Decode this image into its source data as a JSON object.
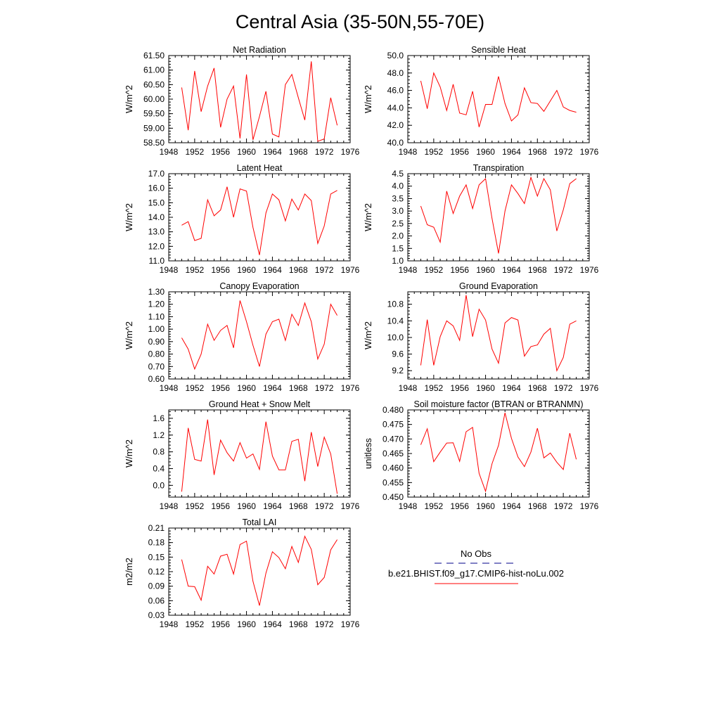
{
  "title": "Central Asia (35-50N,55-70E)",
  "colors": {
    "model": "#ff0000",
    "obs": "#00008b"
  },
  "legend": {
    "entries": [
      {
        "label": "No Obs",
        "style": "dashed",
        "color": "#00008b"
      },
      {
        "label": "b.e21.BHIST.f09_g17.CMIP6-hist-noLu.002",
        "style": "solid",
        "color": "#ff0000"
      }
    ]
  },
  "chart_data": [
    {
      "type": "line",
      "title": "Net Radiation",
      "ylabel": "W/m^2",
      "xlim": [
        1948,
        1976
      ],
      "xticks": [
        1948,
        1952,
        1956,
        1960,
        1964,
        1968,
        1972,
        1976
      ],
      "ylim": [
        58.5,
        61.5
      ],
      "yticks": [
        "58.50",
        "59.00",
        "59.50",
        "60.00",
        "60.50",
        "61.00",
        "61.50"
      ],
      "x": [
        1950,
        1951,
        1952,
        1953,
        1954,
        1955,
        1956,
        1957,
        1958,
        1959,
        1960,
        1961,
        1962,
        1963,
        1964,
        1965,
        1966,
        1967,
        1968,
        1969,
        1970,
        1971,
        1972,
        1973,
        1974
      ],
      "series": [
        {
          "values": [
            60.4,
            58.93,
            60.97,
            59.57,
            60.45,
            61.07,
            59.03,
            60.0,
            60.45,
            58.65,
            60.85,
            58.6,
            59.4,
            60.27,
            58.8,
            58.7,
            60.5,
            60.85,
            60.05,
            59.28,
            61.3,
            58.55,
            58.63,
            60.05,
            59.1
          ]
        }
      ]
    },
    {
      "type": "line",
      "title": "Sensible Heat",
      "ylabel": "W/m^2",
      "xlim": [
        1948,
        1976
      ],
      "xticks": [
        1948,
        1952,
        1956,
        1960,
        1964,
        1968,
        1972,
        1976
      ],
      "ylim": [
        40.0,
        50.0
      ],
      "yticks": [
        "40.0",
        "42.0",
        "44.0",
        "46.0",
        "48.0",
        "50.0"
      ],
      "x": [
        1950,
        1951,
        1952,
        1953,
        1954,
        1955,
        1956,
        1957,
        1958,
        1959,
        1960,
        1961,
        1962,
        1963,
        1964,
        1965,
        1966,
        1967,
        1968,
        1969,
        1970,
        1971,
        1972,
        1973,
        1974
      ],
      "series": [
        {
          "values": [
            47.1,
            43.9,
            48.0,
            46.4,
            43.7,
            46.7,
            43.4,
            43.2,
            45.9,
            41.8,
            44.4,
            44.4,
            47.6,
            44.5,
            42.5,
            43.2,
            46.3,
            44.6,
            44.5,
            43.6,
            44.8,
            46.0,
            44.1,
            43.7,
            43.5
          ]
        }
      ]
    },
    {
      "type": "line",
      "title": "Latent Heat",
      "ylabel": "W/m^2",
      "xlim": [
        1948,
        1976
      ],
      "xticks": [
        1948,
        1952,
        1956,
        1960,
        1964,
        1968,
        1972,
        1976
      ],
      "ylim": [
        11.0,
        17.0
      ],
      "yticks": [
        "11.0",
        "12.0",
        "13.0",
        "14.0",
        "15.0",
        "16.0",
        "17.0"
      ],
      "x": [
        1950,
        1951,
        1952,
        1953,
        1954,
        1955,
        1956,
        1957,
        1958,
        1959,
        1960,
        1961,
        1962,
        1963,
        1964,
        1965,
        1966,
        1967,
        1968,
        1969,
        1970,
        1971,
        1972,
        1973,
        1974
      ],
      "series": [
        {
          "values": [
            13.45,
            13.7,
            12.4,
            12.55,
            15.2,
            14.1,
            14.5,
            16.1,
            14.0,
            15.95,
            15.8,
            13.3,
            11.4,
            14.3,
            15.6,
            15.2,
            13.75,
            15.25,
            14.5,
            15.6,
            15.15,
            12.2,
            13.4,
            15.6,
            15.85
          ]
        }
      ]
    },
    {
      "type": "line",
      "title": "Transpiration",
      "ylabel": "W/m^2",
      "xlim": [
        1948,
        1976
      ],
      "xticks": [
        1948,
        1952,
        1956,
        1960,
        1964,
        1968,
        1972,
        1976
      ],
      "ylim": [
        1.0,
        4.5
      ],
      "yticks": [
        "1.0",
        "1.5",
        "2.0",
        "2.5",
        "3.0",
        "3.5",
        "4.0",
        "4.5"
      ],
      "x": [
        1950,
        1951,
        1952,
        1953,
        1954,
        1955,
        1956,
        1957,
        1958,
        1959,
        1960,
        1961,
        1962,
        1963,
        1964,
        1965,
        1966,
        1967,
        1968,
        1969,
        1970,
        1971,
        1972,
        1973,
        1974
      ],
      "series": [
        {
          "values": [
            3.2,
            2.45,
            2.35,
            1.75,
            3.8,
            2.9,
            3.6,
            4.05,
            3.1,
            4.05,
            4.3,
            2.7,
            1.3,
            3.0,
            4.05,
            3.7,
            3.3,
            4.35,
            3.6,
            4.3,
            3.85,
            2.2,
            3.05,
            4.1,
            4.3
          ]
        }
      ]
    },
    {
      "type": "line",
      "title": "Canopy Evaporation",
      "ylabel": "W/m^2",
      "xlim": [
        1948,
        1976
      ],
      "xticks": [
        1948,
        1952,
        1956,
        1960,
        1964,
        1968,
        1972,
        1976
      ],
      "ylim": [
        0.6,
        1.3
      ],
      "yticks": [
        "0.60",
        "0.70",
        "0.80",
        "0.90",
        "1.00",
        "1.10",
        "1.20",
        "1.30"
      ],
      "x": [
        1950,
        1951,
        1952,
        1953,
        1954,
        1955,
        1956,
        1957,
        1958,
        1959,
        1960,
        1961,
        1962,
        1963,
        1964,
        1965,
        1966,
        1967,
        1968,
        1969,
        1970,
        1971,
        1972,
        1973,
        1974
      ],
      "series": [
        {
          "values": [
            0.93,
            0.84,
            0.68,
            0.8,
            1.04,
            0.91,
            0.99,
            1.03,
            0.85,
            1.23,
            1.06,
            0.87,
            0.7,
            0.96,
            1.06,
            1.08,
            0.91,
            1.12,
            1.03,
            1.21,
            1.06,
            0.76,
            0.88,
            1.2,
            1.11
          ]
        }
      ]
    },
    {
      "type": "line",
      "title": "Ground Evaporation",
      "ylabel": "W/m^2",
      "xlim": [
        1948,
        1976
      ],
      "xticks": [
        1948,
        1952,
        1956,
        1960,
        1964,
        1968,
        1972,
        1976
      ],
      "ylim": [
        9.0,
        11.1
      ],
      "yticks": [
        "9.2",
        "9.6",
        "10.0",
        "10.4",
        "10.8"
      ],
      "ytick_values": [
        9.2,
        9.6,
        10.0,
        10.4,
        10.8
      ],
      "x": [
        1950,
        1951,
        1952,
        1953,
        1954,
        1955,
        1956,
        1957,
        1958,
        1959,
        1960,
        1961,
        1962,
        1963,
        1964,
        1965,
        1966,
        1967,
        1968,
        1969,
        1970,
        1971,
        1972,
        1973,
        1974
      ],
      "series": [
        {
          "values": [
            9.33,
            10.43,
            9.33,
            10.02,
            10.4,
            10.28,
            9.93,
            11.02,
            10.02,
            10.68,
            10.42,
            9.72,
            9.38,
            10.35,
            10.48,
            10.42,
            9.55,
            9.78,
            9.82,
            10.08,
            10.22,
            9.2,
            9.52,
            10.32,
            10.4
          ]
        }
      ]
    },
    {
      "type": "line",
      "title": "Ground Heat + Snow Melt",
      "ylabel": "W/m^2",
      "xlim": [
        1948,
        1976
      ],
      "xticks": [
        1948,
        1952,
        1956,
        1960,
        1964,
        1968,
        1972,
        1976
      ],
      "ylim": [
        -0.28,
        1.8
      ],
      "yticks": [
        "0.0",
        "0.4",
        "0.8",
        "1.2",
        "1.6"
      ],
      "ytick_values": [
        0.0,
        0.4,
        0.8,
        1.2,
        1.6
      ],
      "x": [
        1950,
        1951,
        1952,
        1953,
        1954,
        1955,
        1956,
        1957,
        1958,
        1959,
        1960,
        1961,
        1962,
        1963,
        1964,
        1965,
        1966,
        1967,
        1968,
        1969,
        1970,
        1971,
        1972,
        1973,
        1974
      ],
      "series": [
        {
          "values": [
            -0.15,
            1.37,
            0.62,
            0.58,
            1.57,
            0.25,
            1.08,
            0.78,
            0.58,
            1.02,
            0.65,
            0.75,
            0.38,
            1.52,
            0.7,
            0.37,
            0.37,
            1.05,
            1.1,
            0.1,
            1.27,
            0.45,
            1.15,
            0.75,
            -0.2
          ]
        }
      ]
    },
    {
      "type": "line",
      "title": "Soil moisture factor (BTRAN or BTRANMN)",
      "ylabel": "unitless",
      "xlim": [
        1948,
        1976
      ],
      "xticks": [
        1948,
        1952,
        1956,
        1960,
        1964,
        1968,
        1972,
        1976
      ],
      "ylim": [
        0.45,
        0.48
      ],
      "yticks": [
        "0.450",
        "0.455",
        "0.460",
        "0.465",
        "0.470",
        "0.475",
        "0.480"
      ],
      "x": [
        1950,
        1951,
        1952,
        1953,
        1954,
        1955,
        1956,
        1957,
        1958,
        1959,
        1960,
        1961,
        1962,
        1963,
        1964,
        1965,
        1966,
        1967,
        1968,
        1969,
        1970,
        1971,
        1972,
        1973,
        1974
      ],
      "series": [
        {
          "values": [
            0.468,
            0.4735,
            0.4622,
            0.4655,
            0.4686,
            0.4687,
            0.4623,
            0.4725,
            0.474,
            0.4582,
            0.452,
            0.4615,
            0.4678,
            0.479,
            0.4702,
            0.4638,
            0.4605,
            0.4655,
            0.4737,
            0.4635,
            0.4652,
            0.462,
            0.4595,
            0.472,
            0.463
          ]
        }
      ]
    },
    {
      "type": "line",
      "title": "Total LAI",
      "ylabel": "m2/m2",
      "xlim": [
        1948,
        1976
      ],
      "xticks": [
        1948,
        1952,
        1956,
        1960,
        1964,
        1968,
        1972,
        1976
      ],
      "ylim": [
        0.03,
        0.21
      ],
      "yticks": [
        "0.03",
        "0.06",
        "0.09",
        "0.12",
        "0.15",
        "0.18",
        "0.21"
      ],
      "x": [
        1950,
        1951,
        1952,
        1953,
        1954,
        1955,
        1956,
        1957,
        1958,
        1959,
        1960,
        1961,
        1962,
        1963,
        1964,
        1965,
        1966,
        1967,
        1968,
        1969,
        1970,
        1971,
        1972,
        1973,
        1974
      ],
      "series": [
        {
          "values": [
            0.145,
            0.09,
            0.089,
            0.061,
            0.131,
            0.115,
            0.152,
            0.156,
            0.115,
            0.176,
            0.183,
            0.1,
            0.05,
            0.117,
            0.161,
            0.149,
            0.126,
            0.172,
            0.139,
            0.193,
            0.166,
            0.093,
            0.108,
            0.165,
            0.186
          ]
        }
      ]
    }
  ]
}
